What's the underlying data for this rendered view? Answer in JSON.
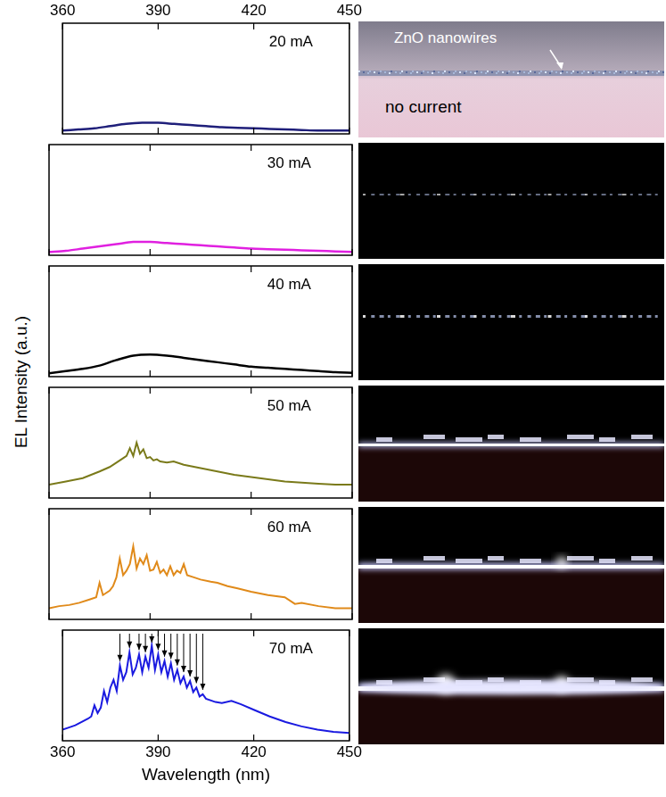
{
  "chart_data": [
    {
      "type": "line",
      "title": "20 mA",
      "color": "#1f1f7a",
      "xlim": [
        360,
        450
      ],
      "xticks": [
        360,
        390,
        420,
        450
      ],
      "ylim": [
        0,
        1
      ],
      "grid": false,
      "tick_labels": "x",
      "x": [
        360,
        365,
        370,
        375,
        380,
        385,
        390,
        395,
        400,
        405,
        410,
        415,
        420,
        425,
        430,
        435,
        440,
        445,
        450
      ],
      "values": [
        0.03,
        0.04,
        0.05,
        0.07,
        0.09,
        0.1,
        0.1,
        0.09,
        0.08,
        0.07,
        0.06,
        0.055,
        0.05,
        0.045,
        0.04,
        0.035,
        0.03,
        0.03,
        0.03
      ]
    },
    {
      "type": "line",
      "title": "30 mA",
      "color": "#e020e0",
      "xlim": [
        360,
        450
      ],
      "xticks": [
        360,
        390,
        420,
        450
      ],
      "ylim": [
        0,
        1
      ],
      "grid": false,
      "tick_labels": false,
      "x": [
        360,
        365,
        370,
        375,
        380,
        385,
        390,
        395,
        400,
        405,
        410,
        415,
        420,
        425,
        430,
        435,
        440,
        445,
        450
      ],
      "values": [
        0.03,
        0.04,
        0.06,
        0.08,
        0.1,
        0.12,
        0.12,
        0.11,
        0.1,
        0.09,
        0.08,
        0.07,
        0.06,
        0.055,
        0.05,
        0.045,
        0.04,
        0.035,
        0.03
      ]
    },
    {
      "type": "line",
      "title": "40 mA",
      "color": "#000000",
      "xlim": [
        360,
        450
      ],
      "xticks": [
        360,
        390,
        420,
        450
      ],
      "ylim": [
        0,
        1
      ],
      "grid": false,
      "tick_labels": false,
      "x": [
        360,
        365,
        370,
        375,
        380,
        385,
        390,
        395,
        400,
        405,
        410,
        415,
        420,
        425,
        430,
        435,
        440,
        445,
        450
      ],
      "values": [
        0.03,
        0.05,
        0.07,
        0.1,
        0.15,
        0.19,
        0.2,
        0.19,
        0.17,
        0.15,
        0.13,
        0.11,
        0.09,
        0.08,
        0.07,
        0.06,
        0.05,
        0.04,
        0.035
      ]
    },
    {
      "type": "line",
      "title": "50 mA",
      "color": "#7a7a1a",
      "xlim": [
        360,
        450
      ],
      "xticks": [
        360,
        390,
        420,
        450
      ],
      "ylim": [
        0,
        1
      ],
      "grid": false,
      "tick_labels": false,
      "x": [
        360,
        365,
        370,
        375,
        378,
        380,
        381,
        382,
        383,
        384,
        385,
        386,
        387,
        388,
        389,
        390,
        391,
        392,
        393,
        395,
        397,
        400,
        405,
        410,
        415,
        420,
        425,
        430,
        435,
        440,
        445,
        450
      ],
      "values": [
        0.12,
        0.15,
        0.18,
        0.24,
        0.28,
        0.32,
        0.34,
        0.36,
        0.38,
        0.45,
        0.38,
        0.5,
        0.4,
        0.44,
        0.36,
        0.37,
        0.34,
        0.35,
        0.33,
        0.32,
        0.33,
        0.3,
        0.27,
        0.24,
        0.21,
        0.19,
        0.17,
        0.15,
        0.14,
        0.13,
        0.12,
        0.12
      ]
    },
    {
      "type": "line",
      "title": "60 mA",
      "color": "#e08a1a",
      "xlim": [
        360,
        450
      ],
      "xticks": [
        360,
        390,
        420,
        450
      ],
      "ylim": [
        0,
        1
      ],
      "grid": false,
      "tick_labels": false,
      "x": [
        360,
        363,
        366,
        369,
        372,
        374,
        375,
        376,
        378,
        379,
        380,
        381,
        382,
        383,
        384,
        385,
        386,
        387,
        388,
        389,
        390,
        391,
        392,
        393,
        394,
        395,
        396,
        397,
        398,
        399,
        400,
        401,
        403,
        405,
        408,
        410,
        413,
        416,
        420,
        425,
        430,
        433,
        435,
        440,
        445,
        450
      ],
      "values": [
        0.1,
        0.12,
        0.13,
        0.15,
        0.18,
        0.2,
        0.33,
        0.22,
        0.26,
        0.3,
        0.38,
        0.55,
        0.4,
        0.44,
        0.5,
        0.66,
        0.46,
        0.55,
        0.5,
        0.58,
        0.44,
        0.45,
        0.52,
        0.42,
        0.45,
        0.4,
        0.48,
        0.4,
        0.44,
        0.42,
        0.5,
        0.4,
        0.38,
        0.36,
        0.34,
        0.33,
        0.3,
        0.28,
        0.25,
        0.22,
        0.2,
        0.14,
        0.15,
        0.12,
        0.1,
        0.1
      ]
    },
    {
      "type": "line",
      "title": "70 mA",
      "color": "#1a1ae0",
      "xlim": [
        360,
        450
      ],
      "xticks": [
        360,
        390,
        420,
        450
      ],
      "ylim": [
        0,
        1
      ],
      "grid": false,
      "tick_labels": "x",
      "xlabel": "Wavelength (nm)",
      "x": [
        360,
        362,
        364,
        366,
        368,
        369,
        370,
        371,
        372,
        373,
        374,
        375,
        376,
        377,
        378,
        379,
        380,
        381,
        382,
        383,
        384,
        385,
        386,
        387,
        388,
        389,
        390,
        391,
        392,
        393,
        394,
        395,
        396,
        397,
        398,
        399,
        400,
        401,
        402,
        403,
        404,
        405,
        408,
        410,
        413,
        416,
        420,
        425,
        430,
        435,
        440,
        445,
        450
      ],
      "values": [
        0.1,
        0.12,
        0.14,
        0.17,
        0.2,
        0.22,
        0.32,
        0.25,
        0.3,
        0.45,
        0.35,
        0.48,
        0.55,
        0.45,
        0.68,
        0.55,
        0.62,
        0.8,
        0.6,
        0.66,
        0.78,
        0.62,
        0.76,
        0.66,
        0.86,
        0.64,
        0.78,
        0.62,
        0.72,
        0.58,
        0.7,
        0.55,
        0.64,
        0.52,
        0.58,
        0.48,
        0.54,
        0.44,
        0.48,
        0.4,
        0.42,
        0.38,
        0.35,
        0.34,
        0.36,
        0.33,
        0.28,
        0.22,
        0.17,
        0.13,
        0.1,
        0.08,
        0.07
      ],
      "mode_markers": [
        378,
        381,
        384,
        386,
        388,
        390,
        392,
        394,
        396,
        398,
        400,
        402,
        404
      ]
    }
  ],
  "ylabel": "EL Intensity (a.u.)",
  "photo_texts": {
    "annotation": "ZnO nanowires",
    "caption": "no current"
  }
}
